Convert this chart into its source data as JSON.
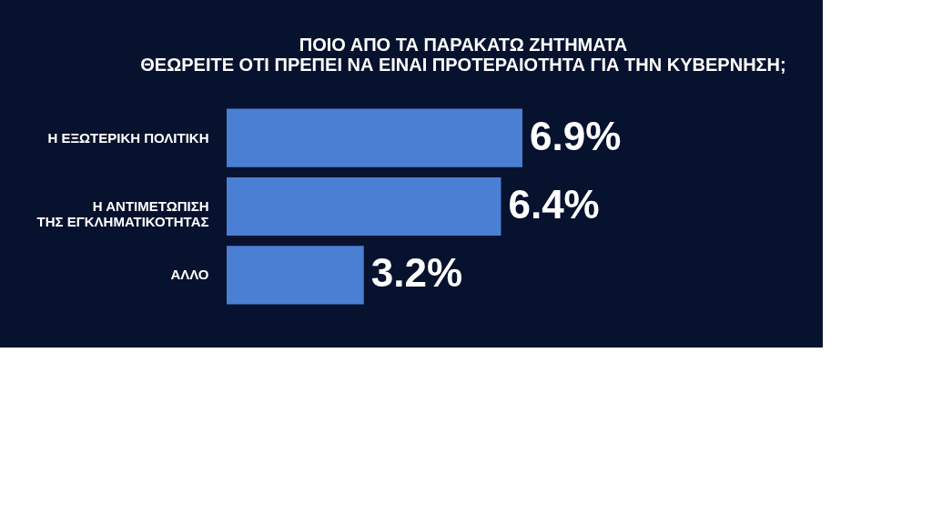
{
  "chart_data": {
    "type": "bar",
    "orientation": "horizontal",
    "title": [
      "ΠΟΙΟ ΑΠΟ ΤΑ ΠΑΡΑΚΑΤΩ ΖΗΤΗΜΑΤΑ",
      "ΘΕΩΡΕΙΤΕ ΟΤΙ ΠΡΕΠΕΙ ΝΑ ΕΙΝΑΙ ΠΡΟΤΕΡΑΙΟΤΗΤΑ ΓΙΑ ΤΗΝ ΚΥΒΕΡΝΗΣΗ;"
    ],
    "categories": [
      "Η ΕΞΩΤΕΡΙΚΗ ΠΟΛΙΤΙΚΗ",
      "Η ΑΝΤΙΜΕΤΩΠΙΣΗ\nΤΗΣ ΕΓΚΛΗΜΑΤΙΚΟΤΗΤΑΣ",
      "ΑΛΛΟ"
    ],
    "values": [
      6.9,
      6.4,
      3.2
    ],
    "value_labels": [
      "6.9%",
      "6.4%",
      "3.2%"
    ],
    "color": "#4a7fd4",
    "grid": false
  }
}
